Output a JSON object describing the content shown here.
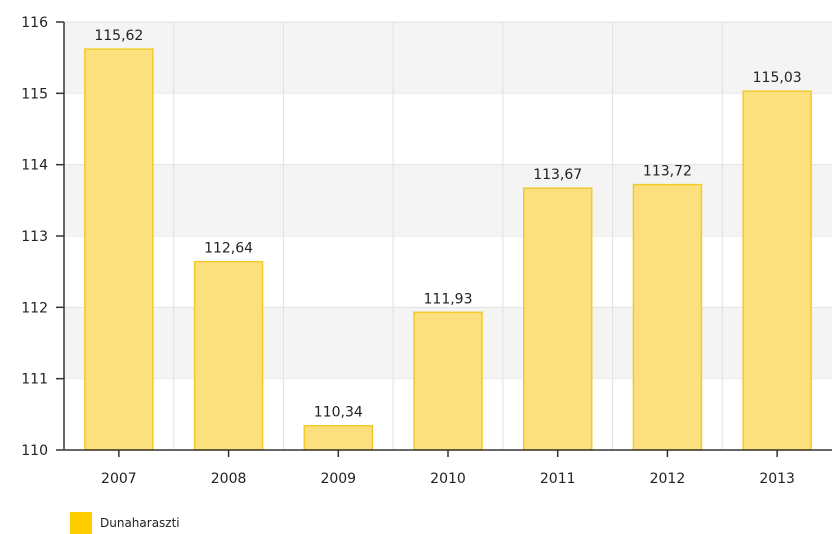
{
  "chart_data": {
    "type": "bar",
    "categories": [
      "2007",
      "2008",
      "2009",
      "2010",
      "2011",
      "2012",
      "2013"
    ],
    "series": [
      {
        "name": "Dunaharaszti",
        "values": [
          115.62,
          112.64,
          110.34,
          111.93,
          113.67,
          113.72,
          115.03
        ],
        "data_labels": [
          "115,62",
          "112,64",
          "110,34",
          "111,93",
          "113,67",
          "113,72",
          "115,03"
        ]
      }
    ],
    "title": "",
    "xlabel": "",
    "ylabel": "",
    "ylim": [
      110,
      116
    ],
    "yticks": [
      "110",
      "111",
      "112",
      "113",
      "114",
      "115",
      "116"
    ],
    "grid": true,
    "legend_position": "bottom-left",
    "colors": {
      "bar_fill": "#fbe07d",
      "bar_stroke": "#f2cb2a",
      "band_alt": "#f4f4f4",
      "grid": "#e2e2e2",
      "axis": "#333333",
      "legend_swatch": "#ffcc00"
    }
  }
}
